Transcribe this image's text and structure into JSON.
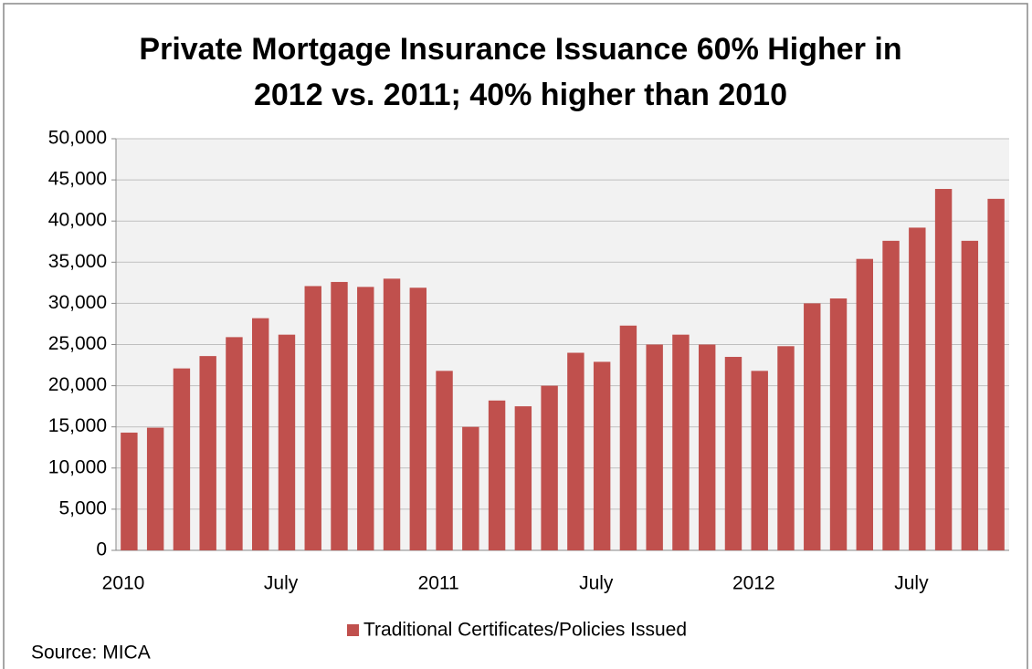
{
  "chart_data": {
    "type": "bar",
    "title": [
      "Private Mortgage Insurance Issuance 60% Higher in",
      "2012 vs. 2011; 40% higher than 2010"
    ],
    "categories": [
      "2010",
      null,
      null,
      null,
      null,
      null,
      "July",
      null,
      null,
      null,
      null,
      null,
      "2011",
      null,
      null,
      null,
      null,
      null,
      "July",
      null,
      null,
      null,
      null,
      null,
      "2012",
      null,
      null,
      null,
      null,
      null,
      "July",
      null,
      null,
      null
    ],
    "series": [
      {
        "name": "Traditional Certificates/Policies Issued",
        "color": "#c0504d",
        "values": [
          14300,
          14900,
          22100,
          23600,
          25900,
          28200,
          26200,
          32100,
          32600,
          32000,
          33000,
          31900,
          21800,
          15000,
          18200,
          17500,
          20000,
          24000,
          22900,
          27300,
          25000,
          26200,
          25000,
          23500,
          21800,
          24800,
          30000,
          30600,
          35400,
          37600,
          39200,
          43900,
          37600,
          42700
        ]
      }
    ],
    "ylim": [
      0,
      50000
    ],
    "yticks": [
      0,
      {
        "value": 5000,
        "label": "5,000"
      },
      {
        "value": 10000,
        "label": "10,000"
      },
      {
        "value": 15000,
        "label": "15,000"
      },
      {
        "value": 20000,
        "label": "20,000"
      },
      {
        "value": 25000,
        "label": "25,000"
      },
      {
        "value": 30000,
        "label": "30,000"
      },
      {
        "value": 35000,
        "label": "35,000"
      },
      {
        "value": 40000,
        "label": "40,000"
      },
      {
        "value": 45000,
        "label": "45,000"
      },
      {
        "value": 50000,
        "label": "50,000"
      }
    ],
    "grid": true,
    "legend": "bottom",
    "source": "Source: MICA"
  }
}
